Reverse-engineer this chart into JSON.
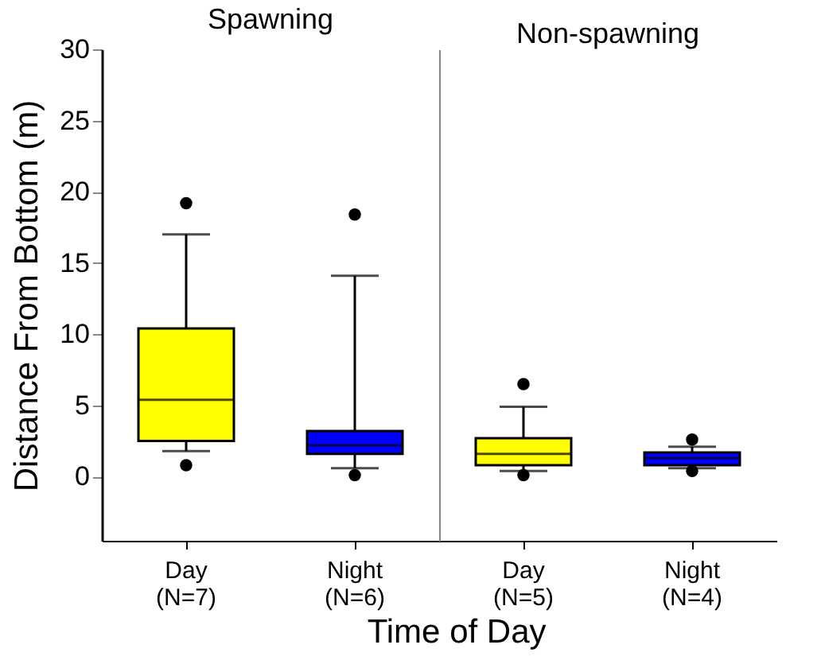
{
  "chart_data": [
    {
      "type": "box",
      "title": "Spawning",
      "xlabel": "Time of Day",
      "ylabel": "Distance From Bottom (m)",
      "categories": [
        "Day (N=7)",
        "Night (N=6)"
      ],
      "colors": [
        "#ffff00",
        "#0000ff"
      ],
      "ylim": [
        -4.5,
        30
      ],
      "yticks": [
        0,
        5,
        10,
        15,
        20,
        25,
        30
      ],
      "boxes": [
        {
          "low": 1.8,
          "q1": 2.5,
          "median": 5.4,
          "q3": 10.4,
          "high": 17.0,
          "outliers": [
            19.2,
            0.8
          ]
        },
        {
          "low": 0.6,
          "q1": 1.6,
          "median": 2.2,
          "q3": 3.2,
          "high": 14.1,
          "outliers": [
            18.4,
            0.1
          ]
        }
      ]
    },
    {
      "type": "box",
      "title": "Non-spawning",
      "categories": [
        "Day (N=5)",
        "Night (N=4)"
      ],
      "colors": [
        "#ffff00",
        "#0000ff"
      ],
      "ylim": [
        -4.5,
        30
      ],
      "yticks": [
        0,
        5,
        10,
        15,
        20,
        25,
        30
      ],
      "tick_labels": "x",
      "boxes": [
        {
          "low": 0.4,
          "q1": 0.8,
          "median": 1.6,
          "q3": 2.7,
          "high": 4.9,
          "outliers": [
            6.5,
            0.1
          ]
        },
        {
          "low": 0.6,
          "q1": 0.8,
          "median": 1.3,
          "q3": 1.7,
          "high": 2.1,
          "outliers": [
            2.6,
            0.4
          ]
        }
      ]
    }
  ]
}
